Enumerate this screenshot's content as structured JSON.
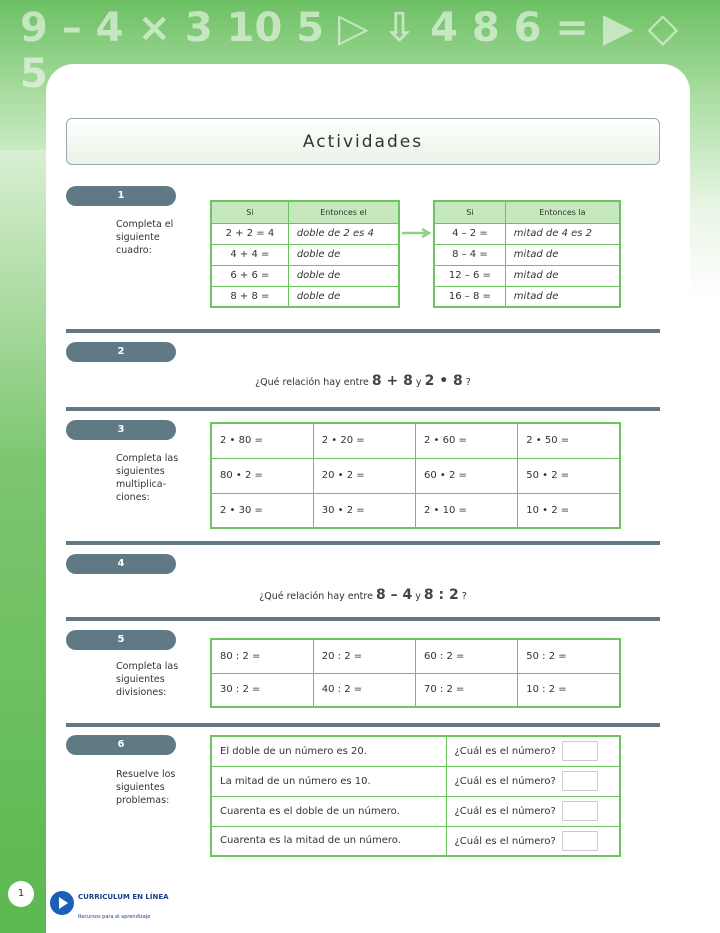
{
  "title": "Actividades",
  "sections": [
    {
      "number": "1",
      "instruction": "Completa el siguiente cuadro:"
    },
    {
      "number": "2",
      "question_prefix": "¿Qué relación hay entre",
      "expr1": "8 + 8",
      "conj": "y",
      "expr2": "2 • 8",
      "question_suffix": "?"
    },
    {
      "number": "3",
      "instruction": "Completa las siguientes multiplica-ciones:"
    },
    {
      "number": "4",
      "question_prefix": "¿Qué relación hay entre",
      "expr1": "8 – 4",
      "conj": "y",
      "expr2": "8 : 2",
      "question_suffix": "?"
    },
    {
      "number": "5",
      "instruction": "Completa las siguientes divisiones:"
    },
    {
      "number": "6",
      "instruction": "Resuelve los siguientes problemas:"
    }
  ],
  "table_doble": {
    "headers": [
      "Si",
      "Entonces el"
    ],
    "rows": [
      [
        "2 + 2 = 4",
        "doble de  2  es  4"
      ],
      [
        "4 + 4 =",
        "doble de"
      ],
      [
        "6 + 6 =",
        "doble de"
      ],
      [
        "8 + 8 =",
        "doble de"
      ]
    ]
  },
  "table_mitad": {
    "headers": [
      "Si",
      "Entonces la"
    ],
    "rows": [
      [
        "4 – 2 =",
        "mitad de  4  es  2"
      ],
      [
        "8 – 4 =",
        "mitad de"
      ],
      [
        "12 – 6 =",
        "mitad de"
      ],
      [
        "16 – 8 =",
        "mitad de"
      ]
    ]
  },
  "table_mult": [
    [
      "2 • 80 =",
      "2 • 20 =",
      "2 • 60 =",
      "2 • 50 ="
    ],
    [
      "80 • 2 =",
      "20 • 2 =",
      "60 • 2 =",
      "50 • 2 ="
    ],
    [
      "2 • 30 =",
      "30 • 2 =",
      "2 • 10 =",
      "10 • 2 ="
    ]
  ],
  "table_div": [
    [
      "80 : 2 =",
      "20 : 2 =",
      "60 : 2 =",
      "50 : 2 ="
    ],
    [
      "30 : 2 =",
      "40 : 2 =",
      "70 : 2 =",
      "10 : 2 ="
    ]
  ],
  "table_problems": [
    [
      "El doble de un número es 20.",
      "¿Cuál es el número?"
    ],
    [
      "La mitad de un número es 10.",
      "¿Cuál es el número?"
    ],
    [
      "Cuarenta es el doble de un número.",
      "¿Cuál es el número?"
    ],
    [
      "Cuarenta es la mitad de un número.",
      "¿Cuál es el número?"
    ]
  ],
  "footer": {
    "page_number": "1",
    "logo_text": "CURRICULUM EN LÍNEA",
    "logo_subtext": "Recursos para el aprendizaje"
  },
  "colors": {
    "green": "#6cc35f",
    "pill": "#5f7a85",
    "header": "#c5e8bd"
  }
}
